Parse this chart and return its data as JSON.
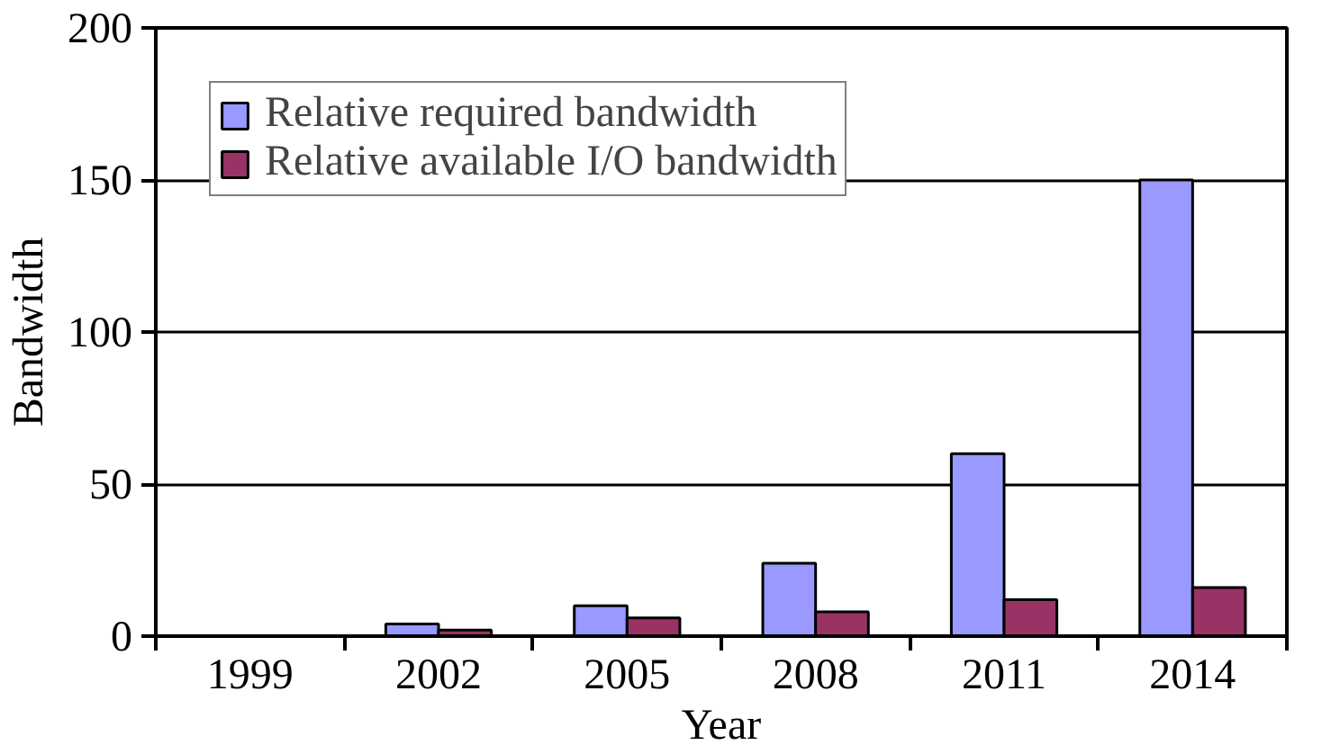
{
  "chart_data": {
    "type": "bar",
    "xlabel": "Year",
    "ylabel": "Bandwidth",
    "categories": [
      "1999",
      "2002",
      "2005",
      "2008",
      "2011",
      "2014"
    ],
    "series": [
      {
        "name": "Relative required bandwidth",
        "color": "#9999ff",
        "values": [
          null,
          4,
          10,
          24,
          60,
          150
        ]
      },
      {
        "name": "Relative available I/O bandwidth",
        "color": "#993366",
        "values": [
          null,
          2,
          6,
          8,
          12,
          16
        ]
      }
    ],
    "ylim": [
      0,
      200
    ],
    "yticks": [
      0,
      50,
      100,
      150,
      200
    ],
    "grid": "y",
    "legend": "top left"
  }
}
